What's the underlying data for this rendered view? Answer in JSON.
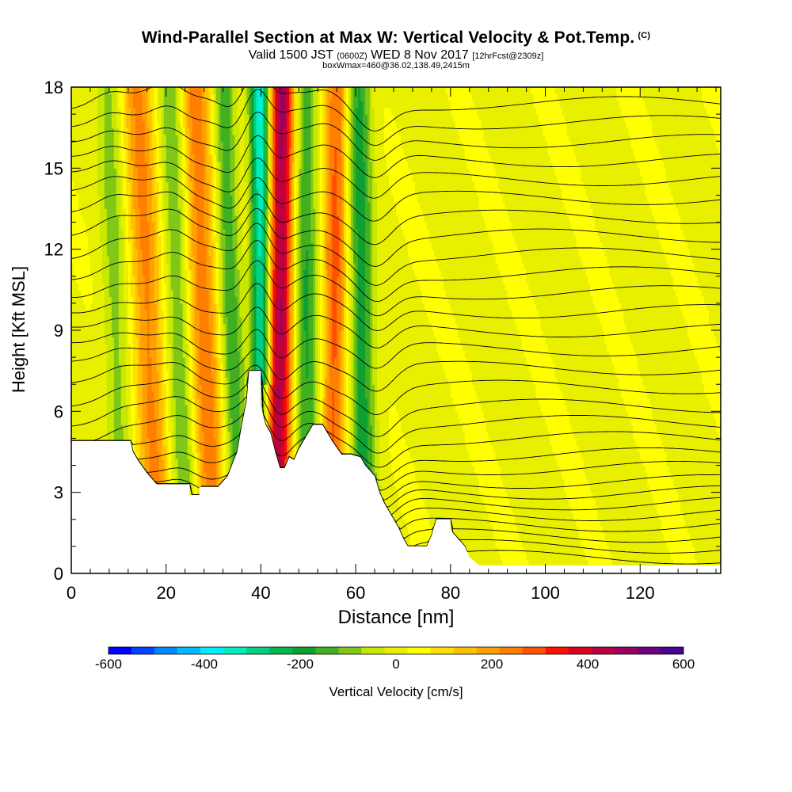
{
  "title": {
    "main": "Wind-Parallel Section at Max W: Vertical Velocity & Pot.Temp.",
    "main_suffix": "(C)",
    "valid_prefix": "Valid 1500 JST",
    "valid_utc": "(0600Z)",
    "valid_date": "WED 8 Nov 2017",
    "forecast": "[12hrFcst@2309z]",
    "boxinfo": "boxWmax=460@36.02,138.49,2415m"
  },
  "colors": {
    "background": "#ffffff",
    "terrain": "#ffffff",
    "contour": "#000000"
  },
  "chart_data": {
    "type": "heatmap",
    "xlabel": "Distance [nm]",
    "ylabel": "Height [Kft MSL]",
    "xlim": [
      0,
      137
    ],
    "ylim": [
      0,
      18
    ],
    "x_ticks": [
      0,
      20,
      40,
      60,
      80,
      100,
      120
    ],
    "y_ticks": [
      0,
      3,
      6,
      9,
      12,
      15,
      18
    ],
    "colorbar": {
      "label": "Vertical Velocity [cm/s]",
      "ticks": [
        -600,
        -400,
        -200,
        0,
        200,
        400,
        600
      ],
      "colors": [
        "#0000ff",
        "#0044ff",
        "#0088ff",
        "#00bbff",
        "#00eeff",
        "#00eebb",
        "#00d080",
        "#00b850",
        "#10a030",
        "#40b020",
        "#80c818",
        "#c8e800",
        "#e8f000",
        "#ffff00",
        "#ffe000",
        "#ffc000",
        "#ffa000",
        "#ff8000",
        "#ff5000",
        "#ff1000",
        "#dd0020",
        "#bb0040",
        "#990060",
        "#700080",
        "#4a0090"
      ]
    },
    "terrain_profile": [
      [
        0,
        4.9
      ],
      [
        12.5,
        4.9
      ],
      [
        13,
        4.5
      ],
      [
        14,
        4.2
      ],
      [
        16,
        3.7
      ],
      [
        18,
        3.3
      ],
      [
        25,
        3.3
      ],
      [
        25,
        2.9
      ],
      [
        27,
        2.9
      ],
      [
        27,
        3.2
      ],
      [
        31,
        3.2
      ],
      [
        33,
        3.6
      ],
      [
        35,
        4.5
      ],
      [
        36,
        5.5
      ],
      [
        37,
        6.4
      ],
      [
        37.5,
        7.5
      ],
      [
        40,
        7.5
      ],
      [
        40,
        6.2
      ],
      [
        41,
        5.5
      ],
      [
        42,
        5.2
      ],
      [
        43,
        4.5
      ],
      [
        44,
        3.9
      ],
      [
        45,
        3.9
      ],
      [
        46,
        4.3
      ],
      [
        47,
        4.2
      ],
      [
        48,
        4.6
      ],
      [
        49,
        4.9
      ],
      [
        50,
        5.2
      ],
      [
        51,
        5.5
      ],
      [
        53,
        5.5
      ],
      [
        55,
        4.9
      ],
      [
        57,
        4.4
      ],
      [
        59,
        4.4
      ],
      [
        61,
        4.3
      ],
      [
        62,
        4.0
      ],
      [
        64,
        3.6
      ],
      [
        65,
        3.0
      ],
      [
        66,
        2.6
      ],
      [
        67,
        2.3
      ],
      [
        68,
        2.0
      ],
      [
        69,
        1.7
      ],
      [
        70,
        1.3
      ],
      [
        71,
        1.0
      ],
      [
        75,
        1.0
      ],
      [
        76,
        1.4
      ],
      [
        77,
        2.0
      ],
      [
        80,
        2.0
      ],
      [
        80,
        1.6
      ],
      [
        81,
        1.4
      ],
      [
        83,
        1.0
      ],
      [
        84,
        0.6
      ],
      [
        86,
        0.3
      ],
      [
        137,
        0.3
      ]
    ],
    "updraft_bands": [
      {
        "x_top": 14,
        "x_bottom": 18.5,
        "w": 5.0,
        "peak": 210
      },
      {
        "x_top": 26,
        "x_bottom": 30,
        "w": 5.0,
        "peak": 230
      },
      {
        "x_top": 44.5,
        "x_bottom": 43,
        "w": 4.5,
        "peak": 460
      },
      {
        "x_top": 56,
        "x_bottom": 55,
        "w": 4.0,
        "peak": 260
      }
    ],
    "downdraft_bands": [
      {
        "x_top": 8,
        "x_bottom": 11,
        "w": 4.0,
        "peak": -110
      },
      {
        "x_top": 21,
        "x_bottom": 24.5,
        "w": 4.0,
        "peak": -150
      },
      {
        "x_top": 32,
        "x_bottom": 35.5,
        "w": 3.5,
        "peak": -180
      },
      {
        "x_top": 40,
        "x_bottom": 40.5,
        "w": 3.2,
        "peak": -420
      },
      {
        "x_top": 49,
        "x_bottom": 50,
        "w": 4.0,
        "peak": -200
      },
      {
        "x_top": 60.5,
        "x_bottom": 62,
        "w": 4.0,
        "peak": -210
      }
    ],
    "isentropes": {
      "base_levels": [
        0.6,
        1.0,
        1.4,
        1.8,
        2.2,
        2.6,
        3.0,
        3.4,
        3.9,
        4.4,
        5.0,
        5.6,
        6.2,
        6.9,
        7.6,
        8.3,
        9.0,
        9.7,
        10.4,
        11.1,
        11.8,
        12.5,
        13.2,
        13.9,
        14.6,
        15.3,
        16.0,
        16.7,
        17.4
      ],
      "wave_amplitude_kft": 2.2
    }
  }
}
